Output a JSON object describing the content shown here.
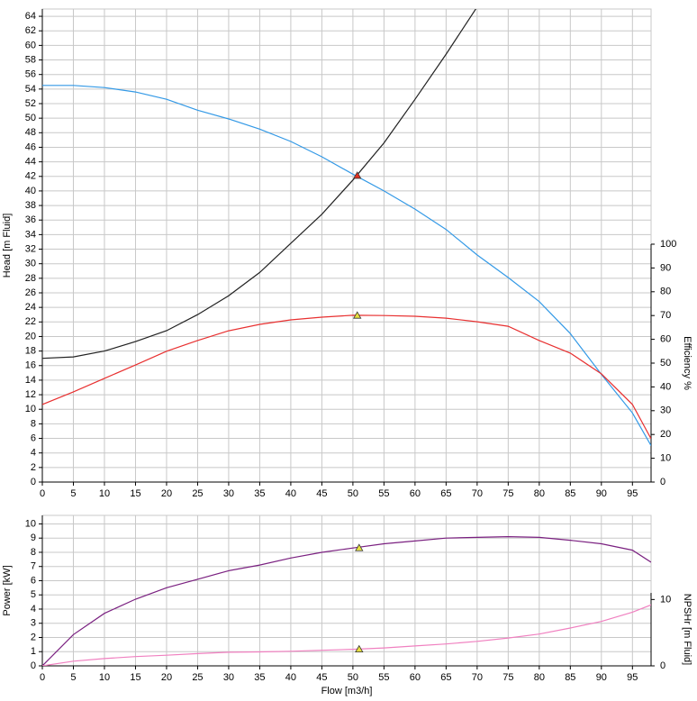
{
  "chart_data": [
    {
      "type": "line",
      "ylabel": "Head [m Fluid]",
      "y2label": "Efficiency %",
      "x": [
        0,
        5,
        10,
        15,
        20,
        25,
        30,
        35,
        40,
        45,
        50,
        55,
        60,
        65,
        70,
        75,
        80,
        85,
        90,
        95,
        98
      ],
      "xlim": [
        0,
        98
      ],
      "xticks": [
        0,
        5,
        10,
        15,
        20,
        25,
        30,
        35,
        40,
        45,
        50,
        55,
        60,
        65,
        70,
        75,
        80,
        85,
        90,
        95
      ],
      "ylim": [
        0,
        65
      ],
      "yticks": [
        0,
        2,
        4,
        6,
        8,
        10,
        12,
        14,
        16,
        18,
        20,
        22,
        24,
        26,
        28,
        30,
        32,
        34,
        36,
        38,
        40,
        42,
        44,
        46,
        48,
        50,
        52,
        54,
        56,
        58,
        60,
        62,
        64
      ],
      "y2lim": [
        0,
        100
      ],
      "y2ticks": [
        0,
        10,
        20,
        30,
        40,
        50,
        60,
        70,
        80,
        90,
        100
      ],
      "grid": true,
      "series": [
        {
          "color": "#3399e6",
          "values": [
            54.5,
            54.5,
            54.2,
            53.6,
            52.6,
            51.1,
            49.9,
            48.5,
            46.8,
            44.7,
            42.3,
            40.0,
            37.5,
            34.7,
            31.2,
            28.1,
            24.8,
            20.4,
            14.8,
            9.5,
            5.0
          ]
        },
        {
          "color": "#222222",
          "values": [
            17.0,
            17.2,
            18.0,
            19.3,
            20.8,
            23.0,
            25.6,
            28.8,
            32.8,
            36.8,
            41.5,
            46.6,
            52.6,
            58.8,
            65.3,
            null,
            null,
            null,
            null,
            null,
            null
          ]
        },
        {
          "color": "#e83030",
          "axis": "y2",
          "values": [
            32.6,
            37.9,
            43.6,
            49.2,
            55.0,
            59.5,
            63.6,
            66.3,
            68.2,
            69.3,
            70.1,
            70.0,
            69.7,
            68.9,
            67.4,
            65.5,
            59.5,
            54.2,
            45.5,
            32.6,
            18.2
          ]
        }
      ],
      "markers": [
        {
          "x": 50.7,
          "y": 42.1,
          "color": "#e03020"
        },
        {
          "x": 50.7,
          "y": 70,
          "axis": "y2",
          "color": "#e8e040"
        }
      ]
    },
    {
      "type": "line",
      "ylabel": "Power [kW]",
      "y2label": "NPSHr [m Fluid]",
      "xlabel": "Flow [m3/h]",
      "x": [
        0,
        5,
        10,
        15,
        20,
        25,
        30,
        35,
        40,
        45,
        50,
        55,
        60,
        65,
        70,
        75,
        80,
        85,
        90,
        95,
        98
      ],
      "xlim": [
        0,
        98
      ],
      "xticks": [
        0,
        5,
        10,
        15,
        20,
        25,
        30,
        35,
        40,
        45,
        50,
        55,
        60,
        65,
        70,
        75,
        80,
        85,
        90,
        95
      ],
      "ylim": [
        0,
        10.6
      ],
      "yticks": [
        0,
        1,
        2,
        3,
        4,
        5,
        6,
        7,
        8,
        9,
        10
      ],
      "y2lim": [
        0,
        11
      ],
      "y2ticks": [
        0,
        10
      ],
      "grid": true,
      "series": [
        {
          "color": "#7a2080",
          "values": [
            0.0,
            2.2,
            3.7,
            4.7,
            5.5,
            6.1,
            6.7,
            7.1,
            7.6,
            8.0,
            8.3,
            8.6,
            8.8,
            9.0,
            9.05,
            9.1,
            9.05,
            8.85,
            8.6,
            8.15,
            7.3
          ]
        },
        {
          "color": "#f080c0",
          "axis": "y2",
          "values": [
            0.0,
            0.7,
            1.1,
            1.4,
            1.6,
            1.85,
            2.05,
            2.1,
            2.2,
            2.35,
            2.5,
            2.7,
            3.0,
            3.3,
            3.7,
            4.2,
            4.8,
            5.7,
            6.7,
            8.1,
            9.2
          ]
        }
      ],
      "markers": [
        {
          "x": 51,
          "y": 8.3,
          "color": "#e8e040"
        },
        {
          "x": 51,
          "y": 2.5,
          "axis": "y2",
          "color": "#e8e040"
        }
      ]
    }
  ]
}
